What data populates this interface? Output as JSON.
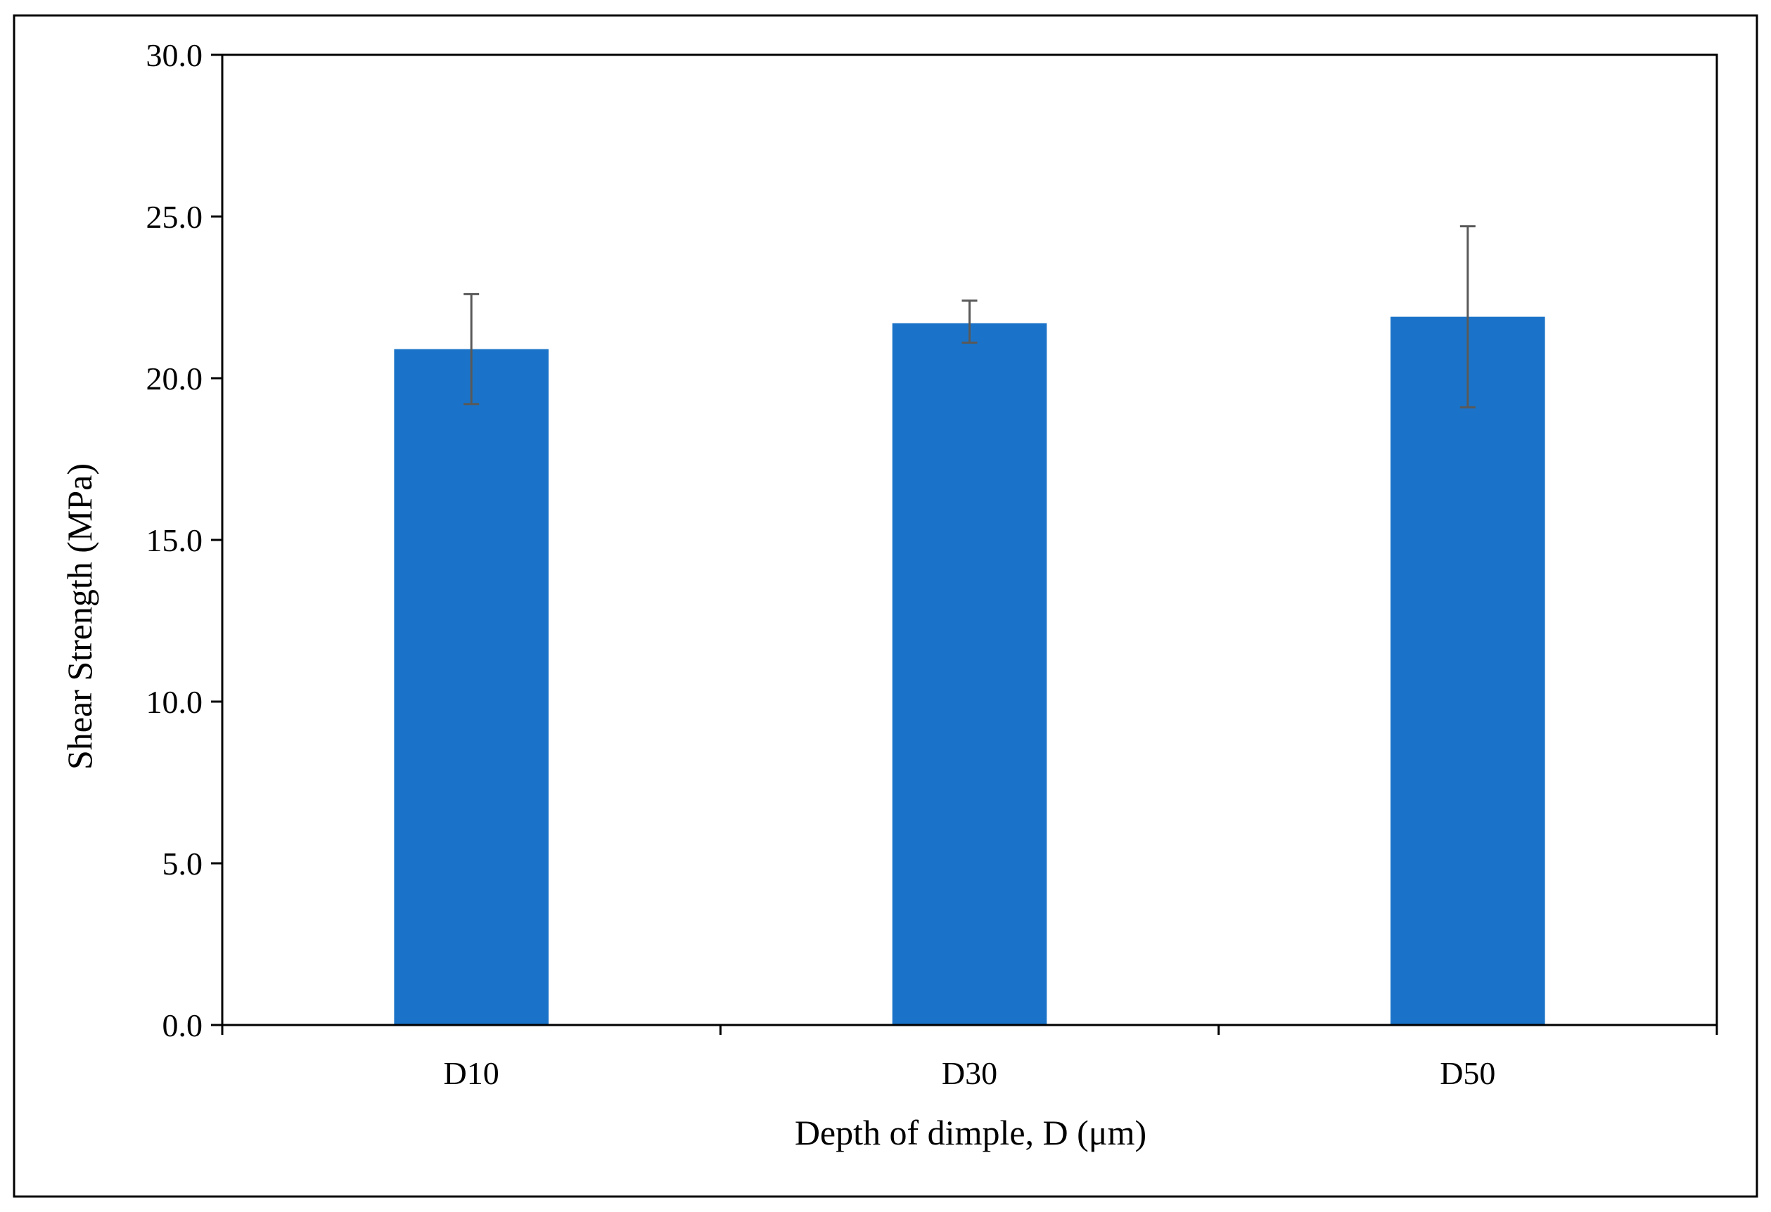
{
  "chart_data": {
    "type": "bar",
    "title": "",
    "xlabel": "Depth of dimple, D (μm)",
    "ylabel": "Shear Strength (MPa)",
    "categories": [
      "D10",
      "D30",
      "D50"
    ],
    "values": [
      20.9,
      21.7,
      21.9
    ],
    "error_bars": [
      {
        "low": 19.2,
        "high": 22.6
      },
      {
        "low": 21.1,
        "high": 22.4
      },
      {
        "low": 19.1,
        "high": 24.7
      }
    ],
    "ylim": [
      0,
      30
    ],
    "y_ticks": [
      0,
      5,
      10,
      15,
      20,
      25,
      30
    ],
    "y_tick_labels": [
      "0.0",
      "5.0",
      "10.0",
      "15.0",
      "20.0",
      "25.0",
      "30.0"
    ],
    "grid": false,
    "legend": "none",
    "colors": {
      "bar": "#1a73c8",
      "error_bar": "#595959",
      "axis": "#000000",
      "frame": "#000000"
    }
  }
}
